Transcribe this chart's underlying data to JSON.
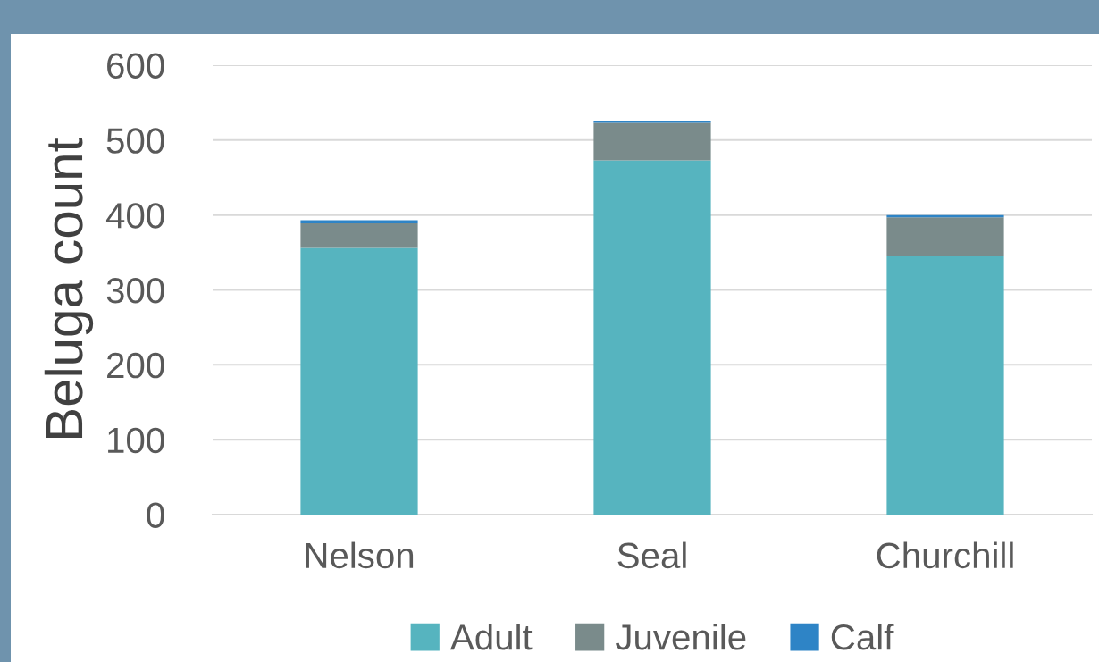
{
  "chart_data": {
    "type": "bar",
    "stacked": true,
    "ylabel": "Beluga count",
    "categories": [
      "Nelson",
      "Seal",
      "Churchill"
    ],
    "series": [
      {
        "name": "Adult",
        "color": "#56b4bf",
        "values": [
          356,
          473,
          345
        ]
      },
      {
        "name": "Juvenile",
        "color": "#7a8b8b",
        "values": [
          33,
          50,
          52
        ]
      },
      {
        "name": "Calf",
        "color": "#2e84c6",
        "values": [
          4,
          3,
          3
        ]
      }
    ],
    "ylim": [
      0,
      600
    ],
    "yticks": [
      0,
      100,
      200,
      300,
      400,
      500,
      600
    ],
    "grid": "y",
    "legend": "bottom"
  }
}
